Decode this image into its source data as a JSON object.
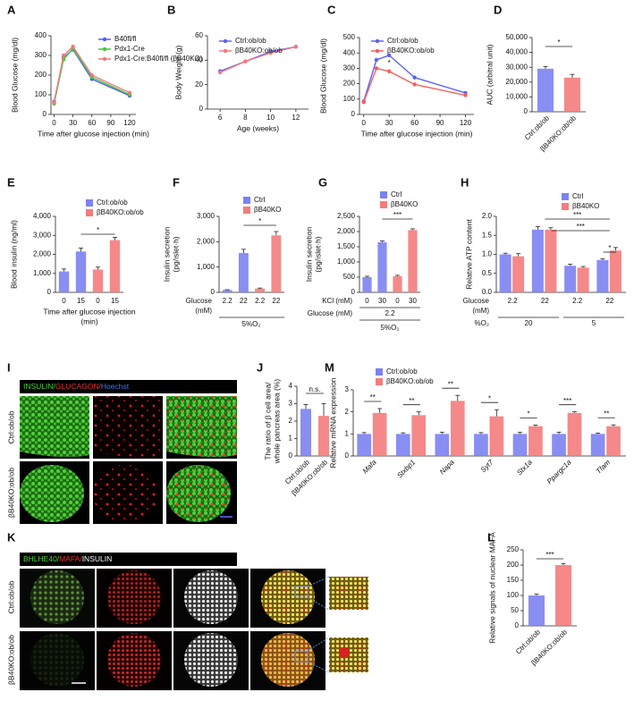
{
  "chart_data": [
    {
      "type": "line",
      "panel": "A",
      "ylabel": "Blood Glucose (mg/dl)",
      "xlabel": "Time after glucose injection (min)",
      "x": [
        0,
        15,
        30,
        60,
        120
      ],
      "xlim": [
        -5,
        130
      ],
      "xticks": [
        0,
        30,
        60,
        90,
        120
      ],
      "ylim": [
        0,
        400
      ],
      "yticks": [
        0,
        100,
        200,
        300,
        400
      ],
      "series": [
        {
          "name": "B40fl/fl",
          "color": "#4f5ff0",
          "values": [
            65,
            290,
            330,
            180,
            95
          ]
        },
        {
          "name": "Pdx1-Cre",
          "color": "#3ec93e",
          "values": [
            55,
            280,
            335,
            190,
            100
          ]
        },
        {
          "name": "Pdx1-Cre:B40fl/fl (βB40KO)",
          "color": "#f27a7a",
          "values": [
            60,
            300,
            345,
            200,
            110
          ]
        }
      ]
    },
    {
      "type": "line",
      "panel": "B",
      "ylabel": "Body Weight (g)",
      "xlabel": "Age (weeks)",
      "x": [
        6,
        8,
        10,
        12
      ],
      "xlim": [
        5,
        13
      ],
      "xticks": [
        6,
        8,
        10,
        12
      ],
      "ylim": [
        0,
        60
      ],
      "yticks": [
        0,
        20,
        40,
        60
      ],
      "series": [
        {
          "name": "Ctrl:ob/ob",
          "color": "#5b63f0",
          "values": [
            31,
            39,
            47,
            51
          ]
        },
        {
          "name": "βB40KO:ob/ob",
          "color": "#f27a7a",
          "values": [
            30,
            39,
            46,
            51
          ]
        }
      ]
    },
    {
      "type": "line",
      "panel": "C",
      "ylabel": "Blood Glucose (mg/dl)",
      "xlabel": "Time after glucose injection (min)",
      "x": [
        0,
        15,
        30,
        60,
        120
      ],
      "xlim": [
        -5,
        130
      ],
      "xticks": [
        0,
        30,
        60,
        90,
        120
      ],
      "ylim": [
        0,
        500
      ],
      "yticks": [
        0,
        100,
        200,
        300,
        400,
        500
      ],
      "series": [
        {
          "name": "Ctrl:ob/ob",
          "color": "#5b63f0",
          "values": [
            85,
            355,
            385,
            240,
            140
          ]
        },
        {
          "name": "βB40KO:ob/ob",
          "color": "#f2605f",
          "values": [
            80,
            300,
            280,
            195,
            125
          ]
        }
      ],
      "annotations": [
        "*"
      ]
    },
    {
      "type": "bar",
      "panel": "D",
      "ylabel": "AUC (arbitral unit)",
      "categories": [
        "Ctrl:ob/ob",
        "βB40KO:ob/ob"
      ],
      "values": [
        29000,
        23000
      ],
      "errors": [
        1500,
        2200
      ],
      "colors": [
        "#7c82f2",
        "#f47c7c"
      ],
      "ylim": [
        0,
        50000
      ],
      "yticks": [
        0,
        {
          "value": 10000,
          "label": "10,000"
        },
        {
          "value": 20000,
          "label": "20,000"
        },
        {
          "value": 30000,
          "label": "30,000"
        },
        {
          "value": 40000,
          "label": "40,000"
        },
        {
          "value": 50000,
          "label": "50,000"
        }
      ],
      "annotations": [
        "*"
      ]
    },
    {
      "type": "bar",
      "panel": "E",
      "ylabel": "Blood insulin (ng/ml)",
      "xlabel": [
        "Time after glucose injection",
        "(min)"
      ],
      "categories": [
        "0",
        "15",
        "0",
        "15"
      ],
      "ylim": [
        0,
        4000
      ],
      "yticks": [
        0,
        {
          "value": 1000,
          "label": "1,000"
        },
        {
          "value": 2000,
          "label": "2,000"
        },
        {
          "value": 3000,
          "label": "3,000"
        },
        {
          "value": 4000,
          "label": "4,000"
        }
      ],
      "series": [
        {
          "name": "Ctrl:ob/ob",
          "color": "#7c82f2",
          "values": [
            1100,
            2150,
            null,
            null
          ],
          "errors": [
            130,
            180,
            null,
            null
          ]
        },
        {
          "name": "βB40KO:ob/ob",
          "color": "#f47c7c",
          "values": [
            null,
            null,
            1200,
            2750
          ],
          "errors": [
            null,
            null,
            130,
            150
          ]
        }
      ],
      "annotations": [
        "*"
      ]
    },
    {
      "type": "bar",
      "panel": "F",
      "ylabel": [
        "Insulin secretion",
        "(pg/islet·h)"
      ],
      "categories": [
        "2.2",
        "22",
        "2.2",
        "22"
      ],
      "ylim": [
        0,
        3000
      ],
      "yticks": [
        0,
        {
          "value": 1000,
          "label": "1,000"
        },
        {
          "value": 2000,
          "label": "2,000"
        },
        {
          "value": 3000,
          "label": "3,000"
        }
      ],
      "series": [
        {
          "name": "Ctrl",
          "color": "#7c82f2",
          "values": [
            90,
            1550,
            null,
            null
          ],
          "errors": [
            15,
            150,
            null,
            null
          ]
        },
        {
          "name": "βB40KO",
          "color": "#f47c7c",
          "values": [
            null,
            null,
            150,
            2250
          ],
          "errors": [
            null,
            null,
            20,
            150
          ]
        }
      ],
      "footer": [
        "Glucose",
        "(mM)",
        "5%O₂"
      ],
      "annotations": [
        "*"
      ]
    },
    {
      "type": "bar",
      "panel": "G",
      "ylabel": [
        "Insulin secretion",
        "(pg/islet·h)"
      ],
      "categories": [
        "0",
        "30",
        "0",
        "30"
      ],
      "ylim": [
        0,
        2500
      ],
      "yticks": [
        0,
        500,
        {
          "value": 1000,
          "label": "1,000"
        },
        {
          "value": 1500,
          "label": "1,500"
        },
        {
          "value": 2000,
          "label": "2,000"
        },
        {
          "value": 2500,
          "label": "2,500"
        }
      ],
      "series": [
        {
          "name": "Ctrl",
          "color": "#7c82f2",
          "values": [
            500,
            1650,
            null,
            null
          ],
          "errors": [
            30,
            40,
            null,
            null
          ]
        },
        {
          "name": "βB40KO",
          "color": "#f47c7c",
          "values": [
            null,
            null,
            530,
            2050
          ],
          "errors": [
            null,
            null,
            30,
            40
          ]
        }
      ],
      "footer": [
        "KCl (mM)",
        "Glucose (mM)",
        "2.2",
        "5%O₂"
      ],
      "annotations": [
        "***"
      ]
    },
    {
      "type": "bar",
      "panel": "H",
      "ylabel": "Relative ATP content",
      "categories": [
        "2.2",
        "22",
        "2.2",
        "22"
      ],
      "ylim": [
        0,
        2
      ],
      "yticks": [
        {
          "value": 0,
          "label": "0.0"
        },
        0.5,
        {
          "value": 1,
          "label": "1.0"
        },
        1.5,
        {
          "value": 2,
          "label": "2.0"
        }
      ],
      "series": [
        {
          "name": "Ctrl",
          "color": "#7c82f2",
          "values": [
            1.0,
            1.65,
            0.7,
            0.85
          ],
          "errors": [
            0.03,
            0.08,
            0.04,
            0.03
          ]
        },
        {
          "name": "βB40KO",
          "color": "#f47c7c",
          "values": [
            0.95,
            1.65,
            0.65,
            1.1
          ],
          "errors": [
            0.07,
            0.05,
            0.03,
            0.08
          ]
        }
      ],
      "footer": [
        "Glucose",
        "(mM)",
        "%O₂",
        "20",
        "5"
      ],
      "annotations": [
        "***",
        "***",
        "*"
      ]
    },
    {
      "type": "bar",
      "panel": "J",
      "ylabel": [
        "The ratio of β cell area/",
        "whole pancreas area (%)"
      ],
      "categories": [
        "Ctrl:ob/ob",
        "βB40KO:ob/ob"
      ],
      "values": [
        2.7,
        2.3
      ],
      "errors": [
        0.25,
        0.7
      ],
      "colors": [
        "#7c82f2",
        "#f47c7c"
      ],
      "ylim": [
        0,
        4
      ],
      "yticks": [
        0,
        1,
        2,
        3,
        4
      ],
      "annotations": [
        "n.s."
      ]
    },
    {
      "type": "bar",
      "panel": "M",
      "ylabel": "Relative mRNA expression",
      "categories": [
        "Mafa",
        "Stxbp1",
        "Napa",
        "Syt7",
        "Stx1a",
        "Ppargc1a",
        "Tfam"
      ],
      "ylim": [
        0,
        3
      ],
      "yticks": [
        0,
        1,
        2,
        3
      ],
      "series": [
        {
          "name": "Ctrl:ob/ob",
          "color": "#7c82f2",
          "values": [
            1.0,
            1.0,
            1.0,
            1.0,
            1.0,
            1.0,
            1.0
          ],
          "errors": [
            0.06,
            0.05,
            0.08,
            0.06,
            0.07,
            0.08,
            0.04
          ]
        },
        {
          "name": "βB40KO:ob/ob",
          "color": "#f47c7c",
          "values": [
            1.95,
            1.85,
            2.5,
            1.8,
            1.35,
            1.95,
            1.35
          ],
          "errors": [
            0.2,
            0.15,
            0.25,
            0.3,
            0.05,
            0.05,
            0.06
          ]
        }
      ],
      "sig": [
        "**",
        "**",
        "**",
        "*",
        "*",
        "***",
        "**"
      ]
    },
    {
      "type": "bar",
      "panel": "L",
      "ylabel": "Relative signals of nuclear MAFA",
      "categories": [
        "Ctrl:ob/ob",
        "βB40KO:ob/ob"
      ],
      "values": [
        100,
        200
      ],
      "errors": [
        4,
        5
      ],
      "colors": [
        "#7c82f2",
        "#f47c7c"
      ],
      "ylim": [
        0,
        250
      ],
      "yticks": [
        0,
        50,
        100,
        150,
        200,
        250
      ],
      "annotations": [
        "***"
      ]
    }
  ],
  "image_panels": [
    {
      "panel": "I",
      "header": [
        "INSULIN/",
        "GLUCAGON/",
        "Hoechst"
      ],
      "rows": [
        "Ctrl:ob/ob",
        "βB40KO:ob/ob"
      ]
    },
    {
      "panel": "K",
      "header": [
        "BHLHE40/",
        "MAFA/",
        "INSULIN"
      ],
      "rows": [
        "Ctrl:ob/ob",
        "βB40KO:ob/ob"
      ]
    }
  ]
}
